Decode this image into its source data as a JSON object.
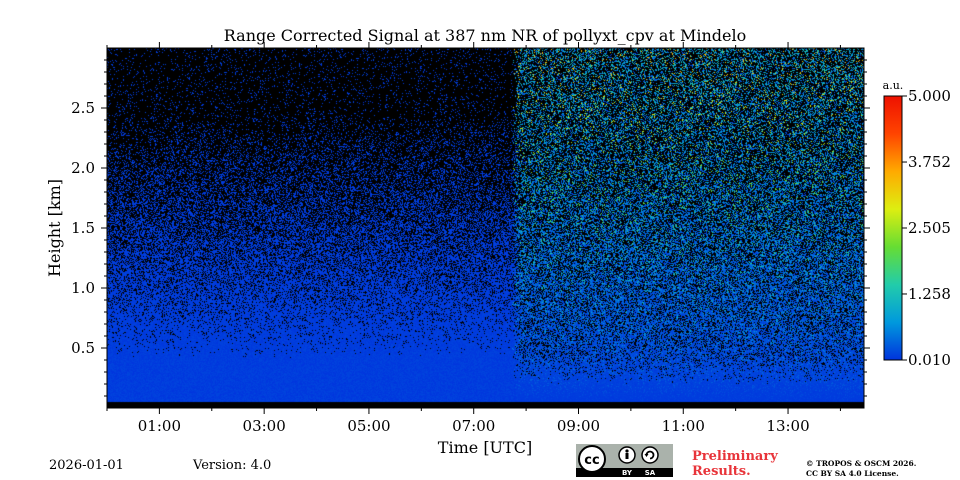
{
  "chart_data": {
    "type": "heatmap",
    "title": "Range Corrected Signal at 387 nm NR of pollyxt_cpv at Mindelo",
    "xlabel": "Time [UTC]",
    "ylabel": "Height [km]",
    "xlim_hours": [
      0.0,
      14.45
    ],
    "ylim_km": [
      0.0,
      3.0
    ],
    "x_ticks": [
      {
        "value": 1,
        "label": "01:00"
      },
      {
        "value": 3,
        "label": "03:00"
      },
      {
        "value": 5,
        "label": "05:00"
      },
      {
        "value": 7,
        "label": "07:00"
      },
      {
        "value": 9,
        "label": "09:00"
      },
      {
        "value": 11,
        "label": "11:00"
      },
      {
        "value": 13,
        "label": "13:00"
      }
    ],
    "y_ticks": [
      {
        "value": 0.5,
        "label": "0.5"
      },
      {
        "value": 1.0,
        "label": "1.0"
      },
      {
        "value": 1.5,
        "label": "1.5"
      },
      {
        "value": 2.0,
        "label": "2.0"
      },
      {
        "value": 2.5,
        "label": "2.5"
      }
    ],
    "colorbar": {
      "unit_label": "a.u.",
      "range": [
        0.01,
        5.0
      ],
      "ticks": [
        {
          "value": 0.01,
          "label": "0.010"
        },
        {
          "value": 1.258,
          "label": "1.258"
        },
        {
          "value": 2.505,
          "label": "2.505"
        },
        {
          "value": 3.752,
          "label": "3.752"
        },
        {
          "value": 5.0,
          "label": "5.000"
        }
      ],
      "colors": [
        "#0033dd",
        "#0099dd",
        "#22ccaa",
        "#66dd33",
        "#ddee11",
        "#ffaa00",
        "#ff4400",
        "#ee1100"
      ]
    },
    "regimes": [
      {
        "name": "night",
        "x_range": [
          0.0,
          7.8
        ],
        "description_values": {
          "typical_signal": 0.05
        }
      },
      {
        "name": "day",
        "x_range": [
          7.8,
          14.45
        ],
        "description_values": {
          "typical_signal": 1.3
        }
      }
    ],
    "no_data_below_km": 0.05
  },
  "footer": {
    "date": "2026-01-01",
    "version": "Version: 4.0",
    "preliminary": "Preliminary Results.",
    "copyright_line1": "© TROPOS & OSCM 2026.",
    "copyright_line2": "CC BY SA 4.0 License.",
    "cc_by": "BY",
    "cc_sa": "SA",
    "cc_mark": "cc"
  }
}
